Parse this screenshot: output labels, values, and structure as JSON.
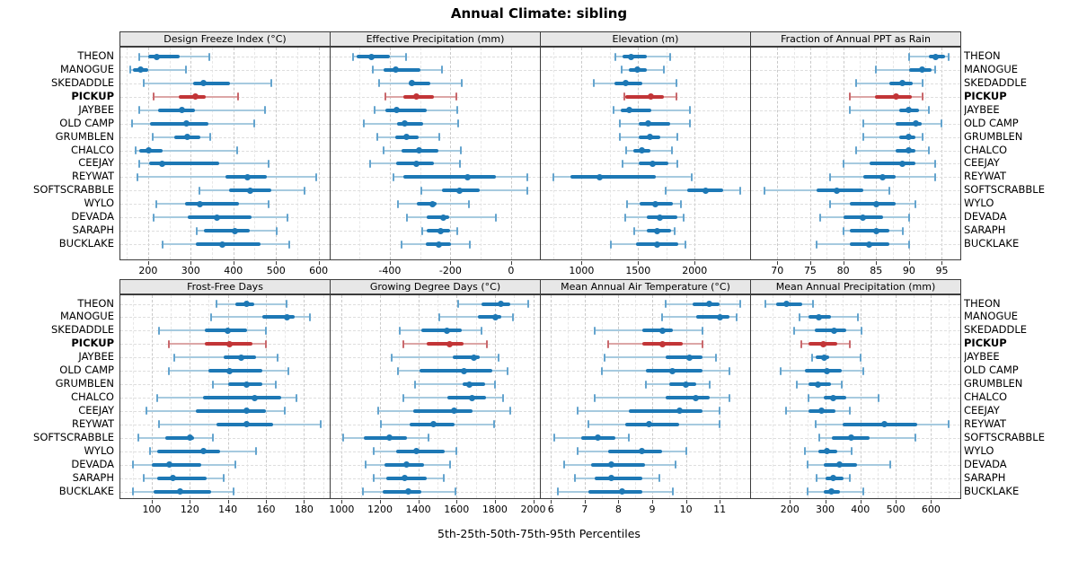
{
  "title": "Annual Climate: sibling",
  "footer": "5th-25th-50th-75th-95th Percentiles",
  "colors": {
    "blue": "#1d78b5",
    "blue_light": "#a6cadf",
    "blue_cap": "#64a4ce",
    "red": "#c23537",
    "red_light": "#dca6a6",
    "red_cap": "#c9686c",
    "grid_major": "#c9c9c9",
    "grid_minor": "#e7e7e7",
    "header_bg": "#e7e7e7",
    "panel_border": "#3c3c3c"
  },
  "chart_data": {
    "type": "dotplot-percentiles",
    "percentile_labels": [
      "5th",
      "25th",
      "50th",
      "75th",
      "95th"
    ],
    "sites": [
      "THEON",
      "MANOGUE",
      "SKEDADDLE",
      "PICKUP",
      "JAYBEE",
      "OLD CAMP",
      "GRUMBLEN",
      "CHALCO",
      "CEEJAY",
      "REYWAT",
      "SOFTSCRABBLE",
      "WYLO",
      "DEVADA",
      "SARAPH",
      "BUCKLAKE"
    ],
    "highlight_site": "PICKUP",
    "legend_position": "none",
    "grid": true,
    "panels": [
      {
        "slug": "design-freeze-index",
        "title": "Design Freeze Index (°C)",
        "xlim": [
          135,
          626
        ],
        "ticks": [
          200,
          300,
          400,
          500,
          600
        ],
        "minor": [
          150,
          250,
          350,
          450,
          550
        ],
        "rows": [
          [
            180,
            201,
            221,
            275,
            343
          ],
          [
            159,
            164,
            182,
            201,
            289
          ],
          [
            189,
            306,
            330,
            392,
            490
          ],
          [
            212,
            273,
            310,
            336,
            411
          ],
          [
            179,
            224,
            279,
            310,
            474
          ],
          [
            163,
            205,
            289,
            341,
            448
          ],
          [
            210,
            262,
            292,
            322,
            345
          ],
          [
            170,
            180,
            201,
            234,
            408
          ],
          [
            180,
            203,
            233,
            366,
            483
          ],
          [
            176,
            382,
            434,
            479,
            595
          ],
          [
            320,
            390,
            440,
            490,
            567
          ],
          [
            219,
            287,
            322,
            413,
            483
          ],
          [
            212,
            294,
            362,
            443,
            527
          ],
          [
            315,
            331,
            404,
            438,
            501
          ],
          [
            233,
            312,
            374,
            464,
            532
          ]
        ]
      },
      {
        "slug": "effective-precipitation",
        "title": "Effective Precipitation (mm)",
        "xlim": [
          -595,
          95
        ],
        "ticks": [
          -400,
          -200,
          0
        ],
        "minor": [
          -500,
          -300,
          -100
        ],
        "rows": [
          [
            -520,
            -508,
            -461,
            -400,
            -346
          ],
          [
            -455,
            -420,
            -380,
            -298,
            -228
          ],
          [
            -435,
            -337,
            -328,
            -266,
            -164
          ],
          [
            -413,
            -356,
            -311,
            -253,
            -179
          ],
          [
            -451,
            -413,
            -378,
            -277,
            -178
          ],
          [
            -485,
            -375,
            -351,
            -290,
            -174
          ],
          [
            -442,
            -383,
            -346,
            -305,
            -236
          ],
          [
            -420,
            -361,
            -302,
            -240,
            -166
          ],
          [
            -464,
            -380,
            -313,
            -255,
            -170
          ],
          [
            -387,
            -356,
            -144,
            -51,
            55
          ],
          [
            -297,
            -228,
            -171,
            -102,
            55
          ],
          [
            -373,
            -311,
            -259,
            -246,
            -139
          ],
          [
            -344,
            -279,
            -223,
            -205,
            -51
          ],
          [
            -292,
            -277,
            -233,
            -200,
            -178
          ],
          [
            -361,
            -282,
            -238,
            -199,
            -135
          ]
        ]
      },
      {
        "slug": "elevation",
        "title": "Elevation (m)",
        "xlim": [
          640,
          2490
        ],
        "ticks": [
          1000,
          1500,
          2000
        ],
        "minor": [
          750,
          1250,
          1750,
          2250
        ],
        "rows": [
          [
            1300,
            1365,
            1440,
            1575,
            1785
          ],
          [
            1355,
            1420,
            1490,
            1580,
            1725
          ],
          [
            1105,
            1295,
            1390,
            1540,
            1835
          ],
          [
            1380,
            1390,
            1615,
            1730,
            1840
          ],
          [
            1280,
            1345,
            1420,
            1620,
            1960
          ],
          [
            1340,
            1503,
            1587,
            1780,
            1960
          ],
          [
            1340,
            1503,
            1603,
            1700,
            1850
          ],
          [
            1397,
            1458,
            1537,
            1608,
            1800
          ],
          [
            1365,
            1503,
            1630,
            1767,
            1850
          ],
          [
            755,
            900,
            1160,
            1655,
            1970
          ],
          [
            1745,
            1935,
            2100,
            2250,
            2405
          ],
          [
            1405,
            1510,
            1650,
            1805,
            1875
          ],
          [
            1385,
            1575,
            1695,
            1845,
            1900
          ],
          [
            1465,
            1575,
            1670,
            1790,
            1820
          ],
          [
            1260,
            1485,
            1670,
            1855,
            1915
          ]
        ]
      },
      {
        "slug": "fraction-ppt-rain",
        "title": "Fraction of Annual PPT as Rain",
        "xlim": [
          66,
          97.8
        ],
        "ticks": [
          70,
          75,
          80,
          85,
          90,
          95
        ],
        "minor": [
          72.5,
          77.5,
          82.5,
          87.5,
          92.5
        ],
        "rows": [
          [
            90,
            93,
            94,
            95.5,
            96
          ],
          [
            85,
            90,
            92,
            93.5,
            94
          ],
          [
            82,
            87,
            89,
            90.5,
            92
          ],
          [
            81,
            84.8,
            88,
            90.5,
            92
          ],
          [
            81,
            88.5,
            90,
            91.5,
            93
          ],
          [
            83,
            88,
            91,
            92,
            95
          ],
          [
            83,
            88.5,
            90,
            91,
            92
          ],
          [
            82,
            88,
            90,
            91,
            93
          ],
          [
            80,
            84,
            89,
            91,
            94
          ],
          [
            78,
            83,
            86,
            88,
            94
          ],
          [
            68,
            76,
            79,
            83,
            87
          ],
          [
            78,
            81,
            85,
            88,
            91
          ],
          [
            76.5,
            80,
            83,
            86,
            90
          ],
          [
            80,
            81,
            85,
            87,
            89
          ],
          [
            76,
            81,
            84,
            87,
            90
          ]
        ]
      },
      {
        "slug": "frost-free-days",
        "title": "Frost-Free Days",
        "xlim": [
          83.5,
          193.5
        ],
        "ticks": [
          100,
          120,
          140,
          160,
          180
        ],
        "minor": [
          90,
          110,
          130,
          150,
          170,
          190
        ],
        "rows": [
          [
            134,
            144,
            150,
            154,
            171
          ],
          [
            131,
            158,
            171,
            175,
            183
          ],
          [
            104,
            128,
            140,
            150,
            160
          ],
          [
            109,
            128,
            141,
            153,
            160
          ],
          [
            112,
            138,
            147,
            155,
            166
          ],
          [
            109,
            130,
            141,
            158,
            172
          ],
          [
            132,
            140,
            150,
            158,
            165
          ],
          [
            103,
            127,
            154,
            168,
            176
          ],
          [
            97,
            123,
            150,
            160,
            170
          ],
          [
            104,
            134,
            150,
            164,
            189
          ],
          [
            93,
            107,
            120,
            122,
            132
          ],
          [
            99,
            103,
            127,
            136,
            155
          ],
          [
            90,
            100,
            109,
            126,
            144
          ],
          [
            96,
            103,
            111,
            129,
            138
          ],
          [
            90,
            101,
            115,
            131,
            143
          ]
        ]
      },
      {
        "slug": "growing-degree-days",
        "title": "Growing Degree Days (°C)",
        "xlim": [
          942,
          2035
        ],
        "ticks": [
          1000,
          1200,
          1400,
          1600,
          1800,
          2000
        ],
        "minor": [
          1100,
          1300,
          1500,
          1700,
          1900
        ],
        "rows": [
          [
            1610,
            1730,
            1830,
            1880,
            1975
          ],
          [
            1510,
            1710,
            1805,
            1835,
            1895
          ],
          [
            1305,
            1415,
            1550,
            1625,
            1730
          ],
          [
            1320,
            1445,
            1565,
            1635,
            1760
          ],
          [
            1260,
            1580,
            1690,
            1720,
            1820
          ],
          [
            1295,
            1405,
            1640,
            1785,
            1865
          ],
          [
            1385,
            1630,
            1665,
            1750,
            1800
          ],
          [
            1320,
            1550,
            1680,
            1755,
            1845
          ],
          [
            1190,
            1375,
            1585,
            1685,
            1880
          ],
          [
            1205,
            1355,
            1480,
            1590,
            1795
          ],
          [
            1010,
            1115,
            1250,
            1340,
            1455
          ],
          [
            1165,
            1285,
            1390,
            1540,
            1600
          ],
          [
            1125,
            1225,
            1340,
            1430,
            1565
          ],
          [
            1165,
            1235,
            1330,
            1445,
            1535
          ],
          [
            1110,
            1215,
            1350,
            1415,
            1595
          ]
        ]
      },
      {
        "slug": "mean-annual-air-temperature",
        "title": "Mean Annual Air Temperature (°C)",
        "xlim": [
          5.7,
          11.9
        ],
        "ticks": [
          6,
          7,
          8,
          9,
          10,
          11
        ],
        "minor": [
          6.5,
          7.5,
          8.5,
          9.5,
          10.5,
          11.5
        ],
        "rows": [
          [
            9.4,
            10.2,
            10.7,
            11.0,
            11.6
          ],
          [
            9.3,
            10.3,
            11.0,
            11.3,
            11.5
          ],
          [
            7.3,
            8.7,
            9.3,
            9.6,
            10.5
          ],
          [
            7.7,
            8.7,
            9.3,
            9.9,
            10.5
          ],
          [
            7.6,
            9.4,
            10.1,
            10.5,
            10.9
          ],
          [
            7.5,
            8.8,
            9.6,
            10.5,
            11.3
          ],
          [
            8.8,
            9.5,
            10.0,
            10.3,
            10.7
          ],
          [
            7.3,
            9.4,
            10.3,
            10.7,
            11.3
          ],
          [
            6.8,
            8.3,
            9.8,
            10.5,
            11.0
          ],
          [
            7.1,
            8.2,
            8.9,
            9.8,
            11.0
          ],
          [
            6.1,
            6.9,
            7.4,
            7.9,
            8.3
          ],
          [
            6.8,
            7.7,
            8.7,
            9.3,
            10.0
          ],
          [
            6.4,
            7.2,
            7.8,
            8.8,
            9.7
          ],
          [
            6.7,
            7.3,
            7.8,
            8.7,
            9.2
          ],
          [
            6.2,
            7.1,
            8.1,
            8.7,
            9.6
          ]
        ]
      },
      {
        "slug": "mean-annual-precipitation",
        "title": "Mean Annual Precipitation (mm)",
        "xlim": [
          90,
          683
        ],
        "ticks": [
          200,
          300,
          400,
          500,
          600
        ],
        "minor": [
          150,
          250,
          350,
          450,
          550,
          650
        ],
        "rows": [
          [
            130,
            160,
            190,
            235,
            265
          ],
          [
            228,
            253,
            283,
            316,
            394
          ],
          [
            211,
            270,
            325,
            360,
            402
          ],
          [
            232,
            253,
            295,
            335,
            369
          ],
          [
            262,
            274,
            297,
            312,
            401
          ],
          [
            175,
            242,
            304,
            348,
            409
          ],
          [
            220,
            253,
            280,
            316,
            348
          ],
          [
            253,
            297,
            322,
            359,
            451
          ],
          [
            190,
            253,
            290,
            329,
            369
          ],
          [
            274,
            350,
            468,
            561,
            651
          ],
          [
            283,
            320,
            375,
            426,
            557
          ],
          [
            242,
            280,
            304,
            335,
            376
          ],
          [
            250,
            297,
            340,
            390,
            485
          ],
          [
            276,
            300,
            322,
            352,
            369
          ],
          [
            250,
            297,
            318,
            343,
            409
          ]
        ]
      }
    ]
  }
}
